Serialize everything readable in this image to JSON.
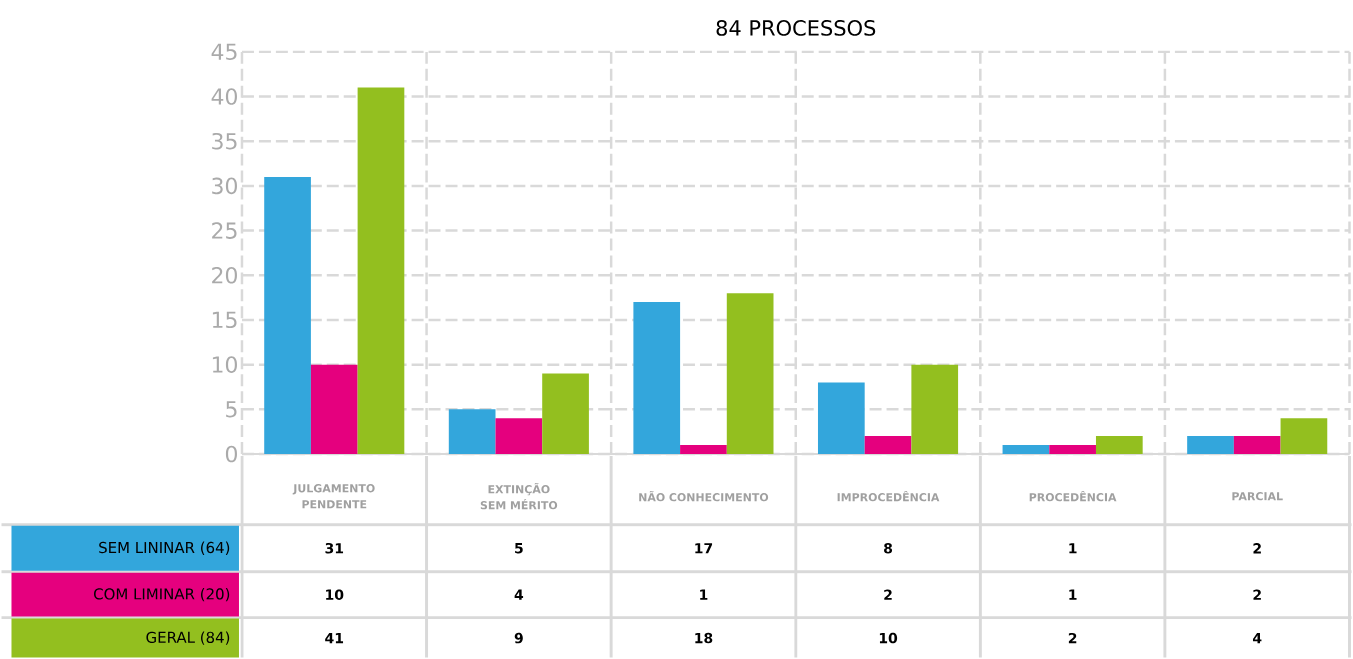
{
  "chart_data": {
    "type": "bar",
    "title": "84 PROCESSOS",
    "categories": [
      "JULGAMENTO PENDENTE",
      "EXTINÇÃO SEM MÉRITO",
      "NÃO CONHECIMENTO",
      "IMPROCEDÊNCIA",
      "PROCEDÊNCIA",
      "PARCIAL"
    ],
    "series": [
      {
        "name": "SEM LININAR (64)",
        "color": "#33a6dc",
        "values": [
          31,
          5,
          17,
          8,
          1,
          2
        ]
      },
      {
        "name": "COM LIMINAR (20)",
        "color": "#e5007e",
        "values": [
          10,
          4,
          1,
          2,
          1,
          2
        ]
      },
      {
        "name": "GERAL (84)",
        "color": "#93bf1f",
        "values": [
          41,
          9,
          18,
          10,
          2,
          4
        ]
      }
    ],
    "ylim": [
      0,
      45
    ],
    "yticks": [
      0,
      5,
      10,
      15,
      20,
      25,
      30,
      35,
      40,
      45
    ],
    "grid": true,
    "legend": "bottom left",
    "data_labels": true
  }
}
